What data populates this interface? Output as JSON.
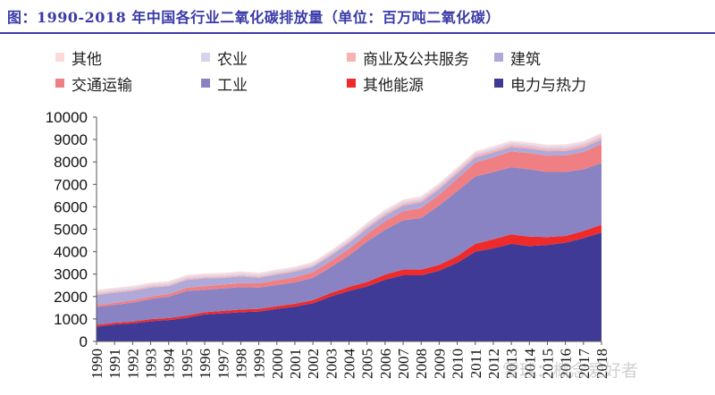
{
  "title": "图：1990-2018 年中国各行业二氧化碳排放量（单位：百万吨二氧化碳）",
  "watermark": "雪球：概念爱好者",
  "chart_data": {
    "type": "area",
    "stacked": true,
    "title": "图：1990-2018 年中国各行业二氧化碳排放量（单位：百万吨二氧化碳）",
    "xlabel": "",
    "ylabel": "",
    "ylim": [
      0,
      10000
    ],
    "yticks": [
      0,
      1000,
      2000,
      3000,
      4000,
      5000,
      6000,
      7000,
      8000,
      9000,
      10000
    ],
    "categories": [
      "1990",
      "1991",
      "1992",
      "1993",
      "1994",
      "1995",
      "1996",
      "1997",
      "1998",
      "1999",
      "2000",
      "2001",
      "2002",
      "2003",
      "2004",
      "2005",
      "2006",
      "2007",
      "2008",
      "2009",
      "2010",
      "2011",
      "2012",
      "2013",
      "2014",
      "2015",
      "2016",
      "2017",
      "2018"
    ],
    "series": [
      {
        "name": "电力与热力",
        "color": "#3f3a96",
        "values": [
          650,
          750,
          800,
          900,
          950,
          1050,
          1200,
          1250,
          1300,
          1330,
          1450,
          1550,
          1700,
          2000,
          2250,
          2450,
          2750,
          2950,
          2950,
          3150,
          3500,
          4000,
          4150,
          4350,
          4250,
          4300,
          4400,
          4600,
          4850
        ]
      },
      {
        "name": "其他能源",
        "color": "#ee2a2a",
        "values": [
          80,
          80,
          80,
          90,
          90,
          100,
          100,
          110,
          120,
          120,
          120,
          130,
          140,
          160,
          180,
          200,
          230,
          250,
          250,
          260,
          300,
          350,
          400,
          420,
          420,
          350,
          300,
          320,
          350
        ]
      },
      {
        "name": "工业",
        "color": "#8a83c3",
        "values": [
          800,
          800,
          850,
          900,
          950,
          1100,
          1000,
          1000,
          1000,
          950,
          950,
          950,
          1000,
          1150,
          1400,
          1800,
          2000,
          2200,
          2300,
          2650,
          2900,
          3000,
          3000,
          3000,
          3000,
          2900,
          2850,
          2750,
          2750
        ]
      },
      {
        "name": "交通运输",
        "color": "#f07f84",
        "values": [
          80,
          90,
          100,
          110,
          120,
          140,
          160,
          170,
          180,
          190,
          210,
          230,
          250,
          270,
          300,
          330,
          380,
          400,
          450,
          480,
          550,
          620,
          650,
          700,
          720,
          730,
          740,
          770,
          850
        ]
      },
      {
        "name": "建筑",
        "color": "#aea9d8",
        "values": [
          450,
          450,
          420,
          400,
          350,
          350,
          350,
          300,
          300,
          250,
          250,
          250,
          230,
          250,
          250,
          250,
          250,
          250,
          250,
          250,
          230,
          220,
          220,
          200,
          200,
          200,
          200,
          200,
          200
        ]
      },
      {
        "name": "商业及公共服务",
        "color": "#f8b3b0",
        "values": [
          60,
          60,
          60,
          60,
          60,
          60,
          60,
          60,
          60,
          60,
          60,
          60,
          60,
          70,
          70,
          80,
          80,
          90,
          90,
          90,
          100,
          100,
          100,
          100,
          100,
          100,
          110,
          110,
          110
        ]
      },
      {
        "name": "农业",
        "color": "#d6d4ed",
        "values": [
          80,
          80,
          80,
          80,
          80,
          80,
          80,
          80,
          80,
          80,
          80,
          80,
          80,
          80,
          90,
          90,
          90,
          90,
          90,
          90,
          90,
          90,
          90,
          90,
          90,
          90,
          90,
          90,
          90
        ]
      },
      {
        "name": "其他",
        "color": "#fbdada",
        "values": [
          80,
          80,
          80,
          80,
          80,
          80,
          80,
          80,
          80,
          80,
          80,
          80,
          80,
          80,
          90,
          90,
          90,
          90,
          90,
          90,
          90,
          90,
          90,
          90,
          90,
          90,
          90,
          90,
          90
        ]
      }
    ],
    "legend": {
      "placement": "top",
      "rows": [
        [
          "其他",
          "农业",
          "商业及公共服务",
          "建筑"
        ],
        [
          "交通运输",
          "工业",
          "其他能源",
          "电力与热力"
        ]
      ]
    }
  }
}
